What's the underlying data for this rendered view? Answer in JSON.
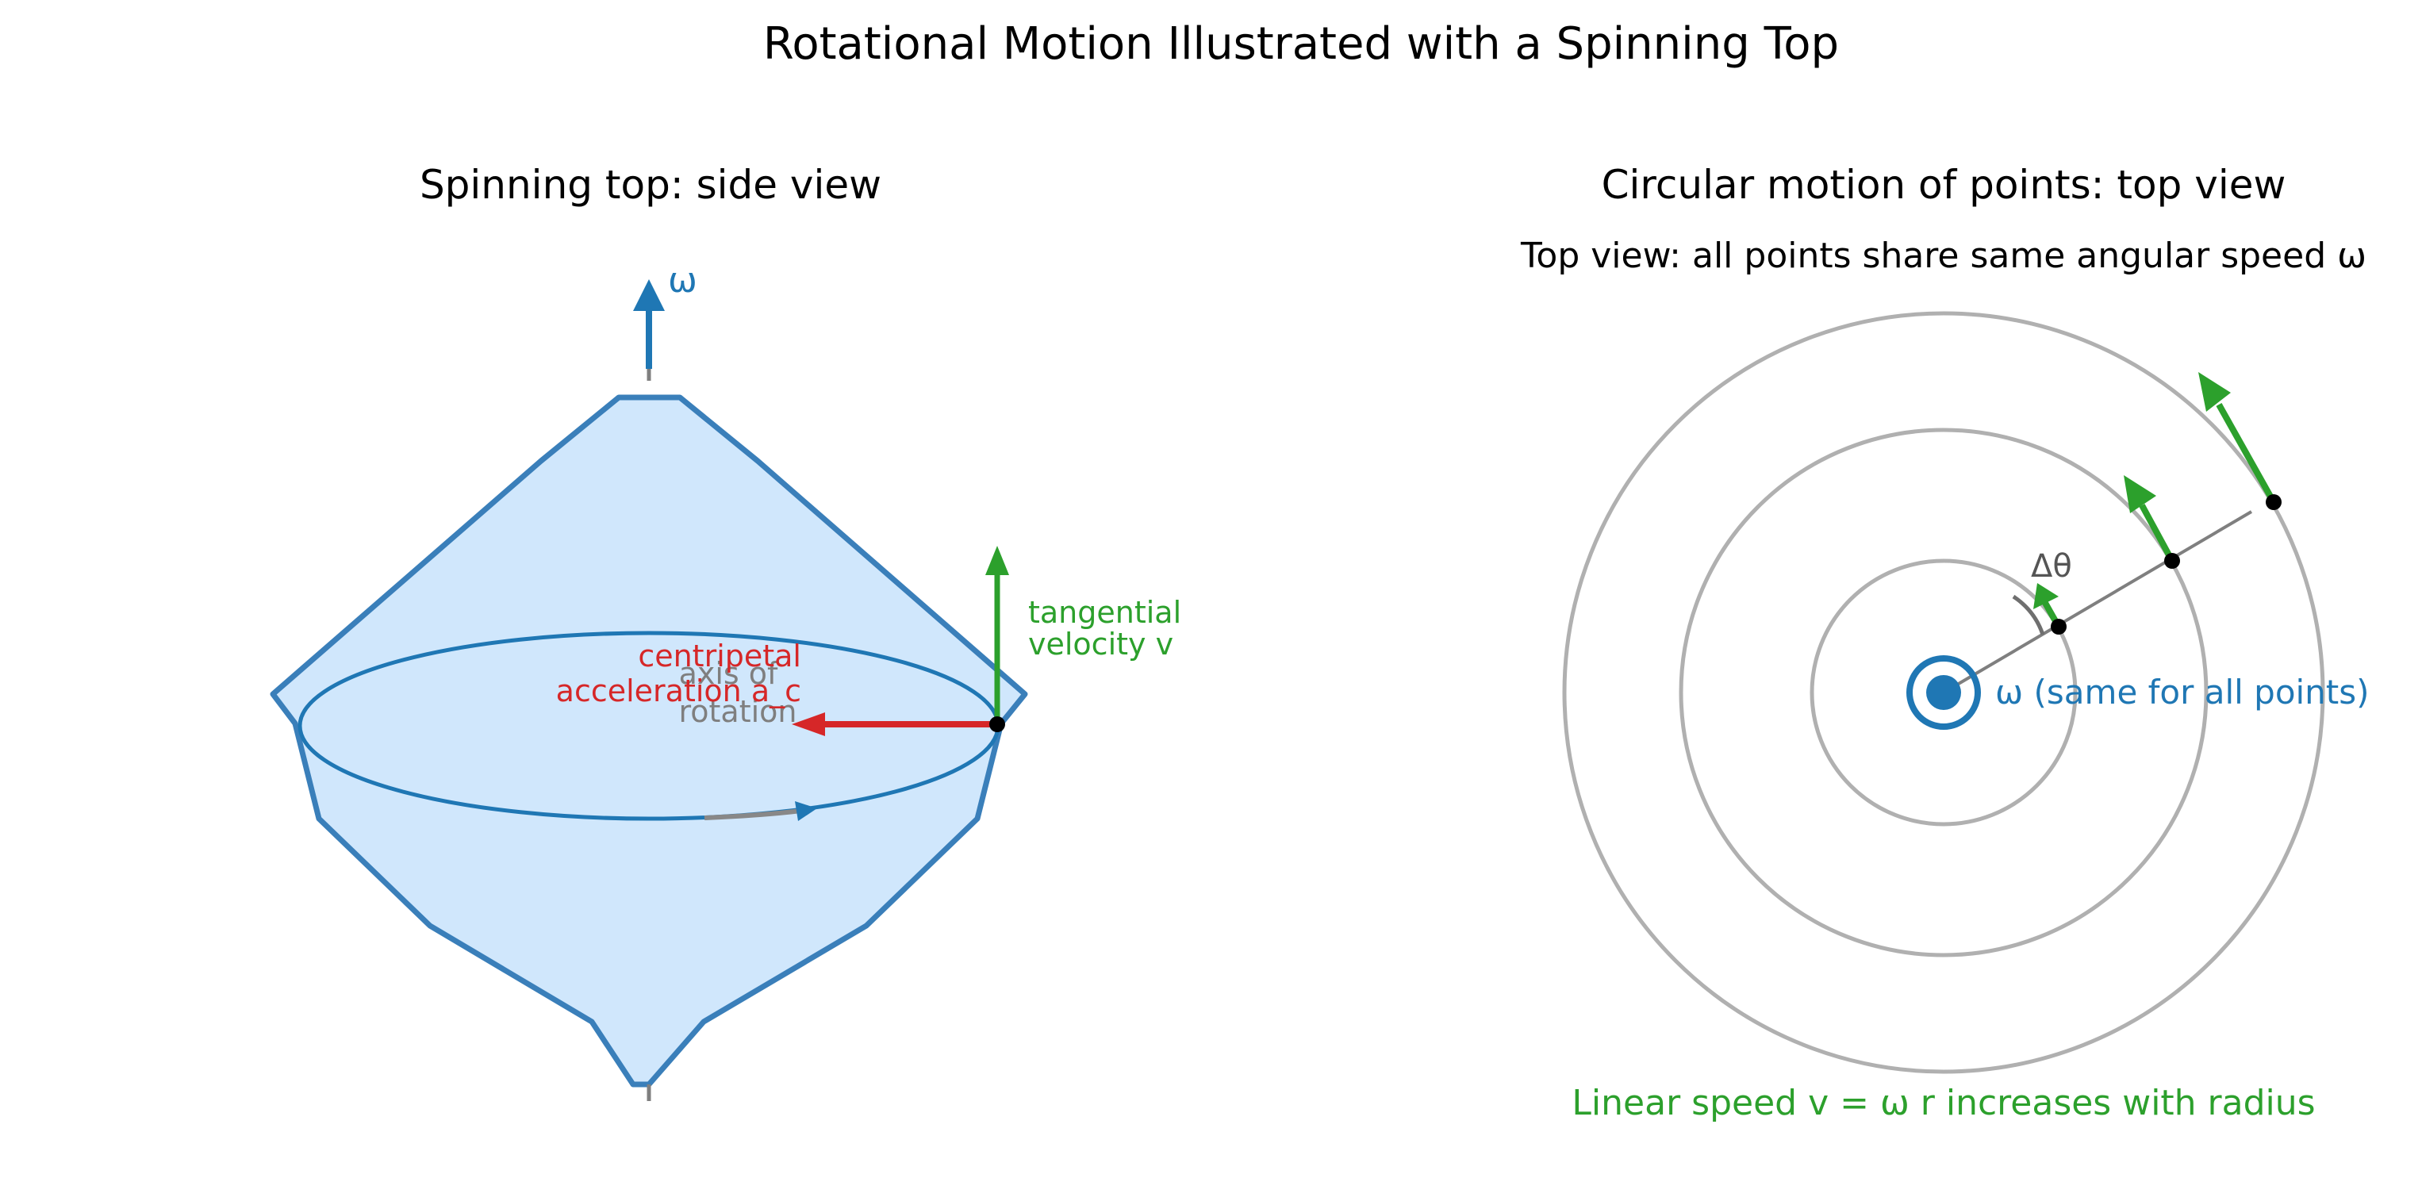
{
  "title": "Rotational Motion Illustrated with a Spinning Top",
  "left_panel": {
    "title": "Spinning top: side view",
    "omega_label": "ω",
    "axis_label_line1": "axis of",
    "axis_label_line2": "rotation",
    "centripetal_line1": "centripetal",
    "centripetal_line2": "acceleration a_c",
    "tangential_line1": "tangential",
    "tangential_line2": "velocity v"
  },
  "right_panel": {
    "title": "Circular motion of points: top view",
    "subtitle": "Top view: all points share same angular speed ω",
    "delta_theta_label": "Δθ",
    "omega_center_label": "ω (same for all points)",
    "bottom_caption": "Linear speed v = ω r increases with radius"
  },
  "colors": {
    "top_fill": "#d0e7fc",
    "top_edge": "#3a7fba",
    "omega_blue": "#1f77b4",
    "tangential_green": "#2ca02c",
    "centripetal_red": "#d62728",
    "axis_gray": "#7f7f7f",
    "circle_gray": "#b0b0b0"
  }
}
